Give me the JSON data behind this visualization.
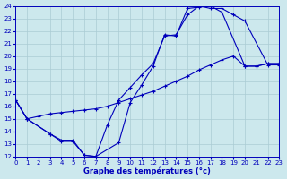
{
  "xlabel": "Graphe des températures (°c)",
  "background_color": "#cce8ed",
  "grid_color": "#aaccd4",
  "line_color": "#0000bb",
  "xlim": [
    0,
    23
  ],
  "ylim": [
    12,
    24
  ],
  "xticks": [
    0,
    1,
    2,
    3,
    4,
    5,
    6,
    7,
    8,
    9,
    10,
    11,
    12,
    13,
    14,
    15,
    16,
    17,
    18,
    19,
    20,
    21,
    22,
    23
  ],
  "yticks": [
    12,
    13,
    14,
    15,
    16,
    17,
    18,
    19,
    20,
    21,
    22,
    23,
    24
  ],
  "line1_x": [
    0,
    1,
    3,
    4,
    5,
    6,
    7,
    8,
    9,
    10,
    11,
    12,
    13,
    14,
    15,
    16,
    17,
    18,
    19,
    20,
    22,
    23
  ],
  "line1_y": [
    16.5,
    15.0,
    13.8,
    13.2,
    13.2,
    12.1,
    12.0,
    14.5,
    16.5,
    17.5,
    18.5,
    19.4,
    21.6,
    21.7,
    23.3,
    24.0,
    23.8,
    23.8,
    23.3,
    22.8,
    19.3,
    19.3
  ],
  "line2_x": [
    0,
    1,
    3,
    4,
    5,
    6,
    7,
    9,
    10,
    11,
    12,
    13,
    14,
    15,
    16,
    17,
    18,
    20,
    21,
    22,
    23
  ],
  "line2_y": [
    16.5,
    15.0,
    13.8,
    13.3,
    13.3,
    12.1,
    12.0,
    13.1,
    16.3,
    17.7,
    19.2,
    21.7,
    21.6,
    23.8,
    23.9,
    24.0,
    23.5,
    19.2,
    19.2,
    19.4,
    19.4
  ],
  "line3_x": [
    0,
    1,
    2,
    3,
    4,
    5,
    6,
    7,
    8,
    9,
    10,
    11,
    12,
    13,
    14,
    15,
    16,
    17,
    18,
    19,
    20,
    21,
    22,
    23
  ],
  "line3_y": [
    16.5,
    15.0,
    15.2,
    15.4,
    15.5,
    15.6,
    15.7,
    15.8,
    16.0,
    16.3,
    16.6,
    16.9,
    17.2,
    17.6,
    18.0,
    18.4,
    18.9,
    19.3,
    19.7,
    20.0,
    19.2,
    19.2,
    19.4,
    19.4
  ]
}
